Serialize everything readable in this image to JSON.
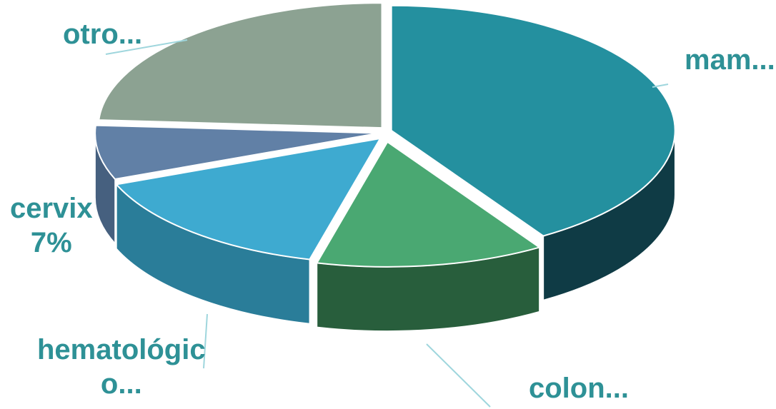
{
  "chart_data": {
    "type": "pie",
    "style": "3d-exploded",
    "slices": [
      {
        "key": "mam",
        "label": "mam...",
        "value": 41,
        "value_label": "",
        "color": "#24909f",
        "side": "#0f3b45"
      },
      {
        "key": "colon",
        "label": "colon...",
        "value": 13,
        "value_label": "",
        "color": "#4aa872",
        "side": "#285e3c"
      },
      {
        "key": "hema",
        "label": "hematológic",
        "label_line2": "o...",
        "value": 15,
        "value_label": "",
        "color": "#3eaad0",
        "side": "#2a7d99"
      },
      {
        "key": "cervix",
        "label": "cervix",
        "value": 7,
        "value_label": "7%",
        "color": "#6180a6",
        "side": "#46607f"
      },
      {
        "key": "otro",
        "label": "otro...",
        "value": 24,
        "value_label": "",
        "color": "#8ca292",
        "side": "#5f7566"
      }
    ],
    "label_color": "#2e9196",
    "leader_color": "#9fd6dd"
  }
}
